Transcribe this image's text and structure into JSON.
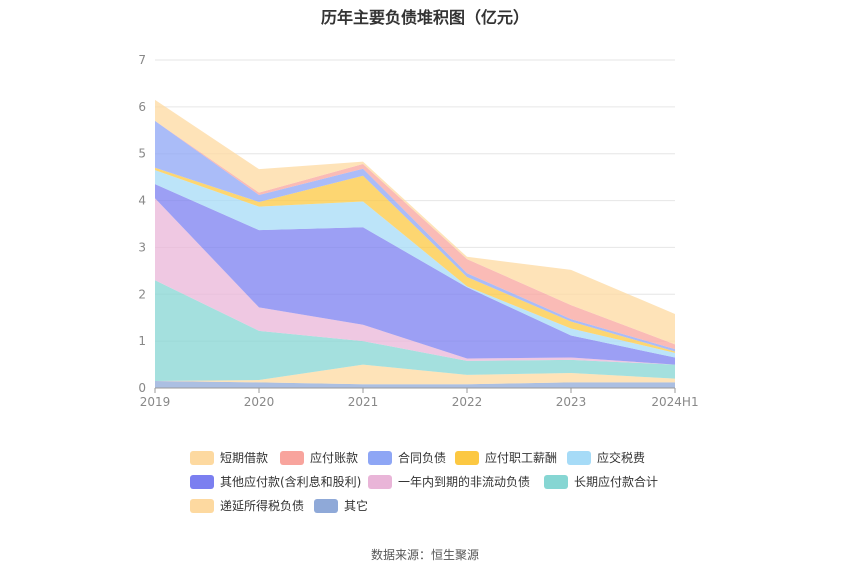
{
  "chart_data": {
    "type": "area",
    "stacked": true,
    "title": "历年主要负债堆积图（亿元）",
    "categories": [
      "2019",
      "2020",
      "2021",
      "2022",
      "2023",
      "2024H1"
    ],
    "ylim": [
      0,
      7
    ],
    "yticks": [
      "0",
      "1",
      "2",
      "3",
      "4",
      "5",
      "6",
      "7"
    ],
    "grid": true,
    "legend_position": "bottom",
    "series": [
      {
        "name": "其它",
        "color": "#8fa9d8",
        "values": [
          0.15,
          0.12,
          0.08,
          0.08,
          0.12,
          0.12
        ]
      },
      {
        "name": "递延所得税负债",
        "color": "#fdd9a0",
        "values": [
          0.0,
          0.05,
          0.42,
          0.2,
          0.2,
          0.08
        ]
      },
      {
        "name": "长期应付款合计",
        "color": "#86d6d3",
        "values": [
          2.15,
          1.05,
          0.5,
          0.3,
          0.28,
          0.3
        ]
      },
      {
        "name": "一年内到期的非流动负债",
        "color": "#e9b5d8",
        "values": [
          1.75,
          0.5,
          0.35,
          0.05,
          0.05,
          0.0
        ]
      },
      {
        "name": "其他应付款(含利息和股利)",
        "color": "#7b7ff0",
        "values": [
          0.3,
          1.65,
          2.08,
          1.52,
          0.47,
          0.15
        ]
      },
      {
        "name": "应交税费",
        "color": "#a6dbf7",
        "values": [
          0.3,
          0.5,
          0.55,
          0.02,
          0.15,
          0.1
        ]
      },
      {
        "name": "应付职工薪酬",
        "color": "#fcc842",
        "values": [
          0.05,
          0.1,
          0.55,
          0.2,
          0.15,
          0.03
        ]
      },
      {
        "name": "合同负债",
        "color": "#8ea6f5",
        "values": [
          1.0,
          0.15,
          0.15,
          0.08,
          0.05,
          0.05
        ]
      },
      {
        "name": "应付账款",
        "color": "#f8a49d",
        "values": [
          0.0,
          0.05,
          0.1,
          0.3,
          0.3,
          0.1
        ]
      },
      {
        "name": "短期借款",
        "color": "#fdd9a0",
        "values": [
          0.45,
          0.5,
          0.05,
          0.05,
          0.75,
          0.65
        ]
      }
    ]
  },
  "legend_items": [
    {
      "label": "短期借款",
      "color": "#fdd9a0"
    },
    {
      "label": "应付账款",
      "color": "#f8a49d"
    },
    {
      "label": "合同负债",
      "color": "#8ea6f5"
    },
    {
      "label": "应付职工薪酬",
      "color": "#fcc842"
    },
    {
      "label": "应交税费",
      "color": "#a6dbf7"
    },
    {
      "label": "其他应付款(含利息和股利)",
      "color": "#7b7ff0"
    },
    {
      "label": "一年内到期的非流动负债",
      "color": "#e9b5d8"
    },
    {
      "label": "长期应付款合计",
      "color": "#86d6d3"
    },
    {
      "label": "递延所得税负债",
      "color": "#fdd9a0"
    },
    {
      "label": "其它",
      "color": "#8fa9d8"
    }
  ],
  "source": "数据来源：恒生聚源"
}
